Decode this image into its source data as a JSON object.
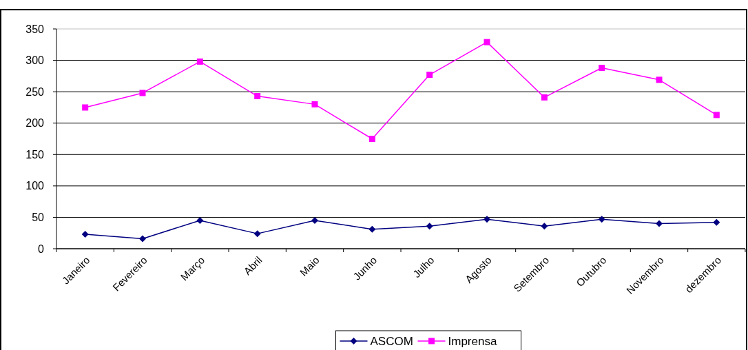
{
  "chart_data": {
    "type": "line",
    "categories": [
      "Janeiro",
      "Fevereiro",
      "Março",
      "Abril",
      "Maio",
      "Junho",
      "Julho",
      "Agosto",
      "Setembro",
      "Outubro",
      "Novembro",
      "dezembro"
    ],
    "series": [
      {
        "name": "ASCOM",
        "color": "#000080",
        "marker": "diamond",
        "values": [
          23,
          16,
          45,
          24,
          45,
          31,
          36,
          47,
          36,
          47,
          40,
          42
        ]
      },
      {
        "name": "Imprensa",
        "color": "#ff00ff",
        "marker": "square",
        "values": [
          225,
          248,
          298,
          243,
          230,
          175,
          277,
          329,
          241,
          288,
          269,
          213
        ]
      }
    ],
    "ylim": [
      0,
      350
    ],
    "yticks": [
      0,
      50,
      100,
      150,
      200,
      250,
      300,
      350
    ],
    "grid": "y",
    "legend": "bottom"
  }
}
